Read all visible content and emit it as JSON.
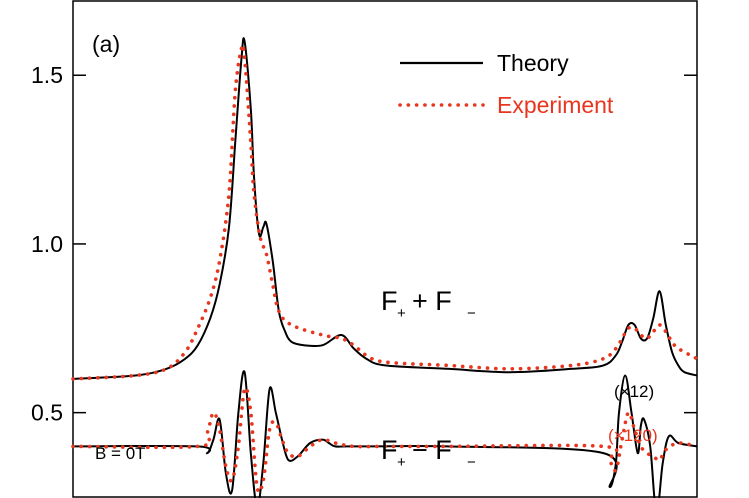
{
  "chart_data": {
    "type": "line",
    "panel_label": "(a)",
    "xlabel": "",
    "ylabel": "",
    "xlim": [
      0,
      1
    ],
    "ylim": [
      0.25,
      1.72
    ],
    "y_ticks": [
      {
        "value": 0.5,
        "label": "0.5"
      },
      {
        "value": 1.0,
        "label": "1.0"
      },
      {
        "value": 1.5,
        "label": "1.5"
      }
    ],
    "legend": {
      "position": "top-right",
      "entries": [
        {
          "series": "Theory",
          "label": "Theory",
          "color": "#000000",
          "style": "solid"
        },
        {
          "series": "Experiment",
          "label": "Experiment",
          "color": "#e8361e",
          "style": "dotted"
        }
      ]
    },
    "annotations": {
      "sum_main": "F",
      "sum_sub1": "+",
      "sum_op": "+ F",
      "sum_sub2": "−",
      "diff_main": "F",
      "diff_sub1": "+",
      "diff_op": "− F",
      "diff_sub2": "−",
      "field": "B = 0T",
      "scale_theory": "(×12)",
      "scale_experiment": "(×120)"
    },
    "colors": {
      "theory": "#000000",
      "experiment": "#e8361e"
    },
    "series": [
      {
        "name": "Theory",
        "group": "F+ + F-",
        "x": [
          0.0,
          0.1,
          0.15,
          0.18,
          0.2,
          0.22,
          0.235,
          0.25,
          0.26,
          0.27,
          0.275,
          0.285,
          0.29,
          0.298,
          0.305,
          0.31,
          0.32,
          0.33,
          0.34,
          0.35,
          0.37,
          0.4,
          0.43,
          0.45,
          0.47,
          0.5,
          0.6,
          0.7,
          0.8,
          0.85,
          0.87,
          0.88,
          0.89,
          0.9,
          0.91,
          0.92,
          0.93,
          0.94,
          0.95,
          0.96,
          0.97,
          0.98,
          1.0
        ],
        "y": [
          0.6,
          0.61,
          0.63,
          0.66,
          0.7,
          0.78,
          0.88,
          1.05,
          1.3,
          1.55,
          1.6,
          1.4,
          1.2,
          1.03,
          1.05,
          1.06,
          0.95,
          0.8,
          0.74,
          0.71,
          0.7,
          0.7,
          0.73,
          0.69,
          0.66,
          0.64,
          0.63,
          0.62,
          0.63,
          0.64,
          0.67,
          0.71,
          0.76,
          0.76,
          0.72,
          0.72,
          0.78,
          0.86,
          0.76,
          0.68,
          0.64,
          0.62,
          0.61
        ]
      },
      {
        "name": "Experiment",
        "group": "F+ + F-",
        "x": [
          0.0,
          0.1,
          0.15,
          0.18,
          0.2,
          0.22,
          0.235,
          0.25,
          0.26,
          0.27,
          0.275,
          0.285,
          0.29,
          0.3,
          0.31,
          0.32,
          0.33,
          0.35,
          0.4,
          0.43,
          0.45,
          0.47,
          0.5,
          0.6,
          0.7,
          0.8,
          0.85,
          0.87,
          0.88,
          0.89,
          0.9,
          0.91,
          0.92,
          0.93,
          0.94,
          0.95,
          0.96,
          0.97,
          1.0
        ],
        "y": [
          0.6,
          0.61,
          0.63,
          0.68,
          0.75,
          0.84,
          0.95,
          1.15,
          1.45,
          1.58,
          1.55,
          1.3,
          1.15,
          1.02,
          0.97,
          0.88,
          0.8,
          0.76,
          0.73,
          0.72,
          0.7,
          0.67,
          0.65,
          0.64,
          0.63,
          0.64,
          0.66,
          0.69,
          0.72,
          0.75,
          0.75,
          0.73,
          0.72,
          0.74,
          0.76,
          0.74,
          0.71,
          0.69,
          0.66
        ]
      },
      {
        "name": "Theory",
        "group": "F+ - F-",
        "scale": "(×12)",
        "x": [
          0.0,
          0.2,
          0.215,
          0.225,
          0.235,
          0.245,
          0.255,
          0.265,
          0.275,
          0.285,
          0.295,
          0.305,
          0.315,
          0.325,
          0.335,
          0.345,
          0.36,
          0.38,
          0.4,
          0.41,
          0.42,
          0.44,
          0.48,
          0.6,
          0.85,
          0.86,
          0.87,
          0.875,
          0.885,
          0.895,
          0.905,
          0.91,
          0.915,
          0.925,
          0.935,
          0.945,
          0.955,
          0.97,
          1.0
        ],
        "y": [
          0.4,
          0.4,
          0.38,
          0.42,
          0.48,
          0.32,
          0.27,
          0.5,
          0.62,
          0.38,
          0.22,
          0.35,
          0.57,
          0.5,
          0.42,
          0.36,
          0.37,
          0.41,
          0.42,
          0.41,
          0.4,
          0.4,
          0.4,
          0.4,
          0.38,
          0.28,
          0.35,
          0.5,
          0.61,
          0.5,
          0.38,
          0.46,
          0.48,
          0.4,
          0.2,
          0.35,
          0.43,
          0.41,
          0.4
        ]
      },
      {
        "name": "Experiment",
        "group": "F+ - F-",
        "scale": "(×120)",
        "x": [
          0.0,
          0.2,
          0.215,
          0.225,
          0.235,
          0.245,
          0.255,
          0.265,
          0.275,
          0.285,
          0.295,
          0.305,
          0.315,
          0.325,
          0.335,
          0.345,
          0.36,
          0.38,
          0.4,
          0.42,
          0.45,
          0.5,
          0.6,
          0.85,
          0.86,
          0.87,
          0.88,
          0.89,
          0.9,
          0.91,
          0.92,
          0.93,
          0.94,
          0.95,
          0.97,
          1.0
        ],
        "y": [
          0.4,
          0.4,
          0.44,
          0.5,
          0.45,
          0.34,
          0.3,
          0.4,
          0.57,
          0.5,
          0.28,
          0.3,
          0.45,
          0.47,
          0.42,
          0.38,
          0.37,
          0.4,
          0.42,
          0.41,
          0.4,
          0.4,
          0.4,
          0.4,
          0.36,
          0.33,
          0.42,
          0.5,
          0.45,
          0.4,
          0.38,
          0.37,
          0.36,
          0.39,
          0.41,
          0.4
        ]
      }
    ]
  }
}
